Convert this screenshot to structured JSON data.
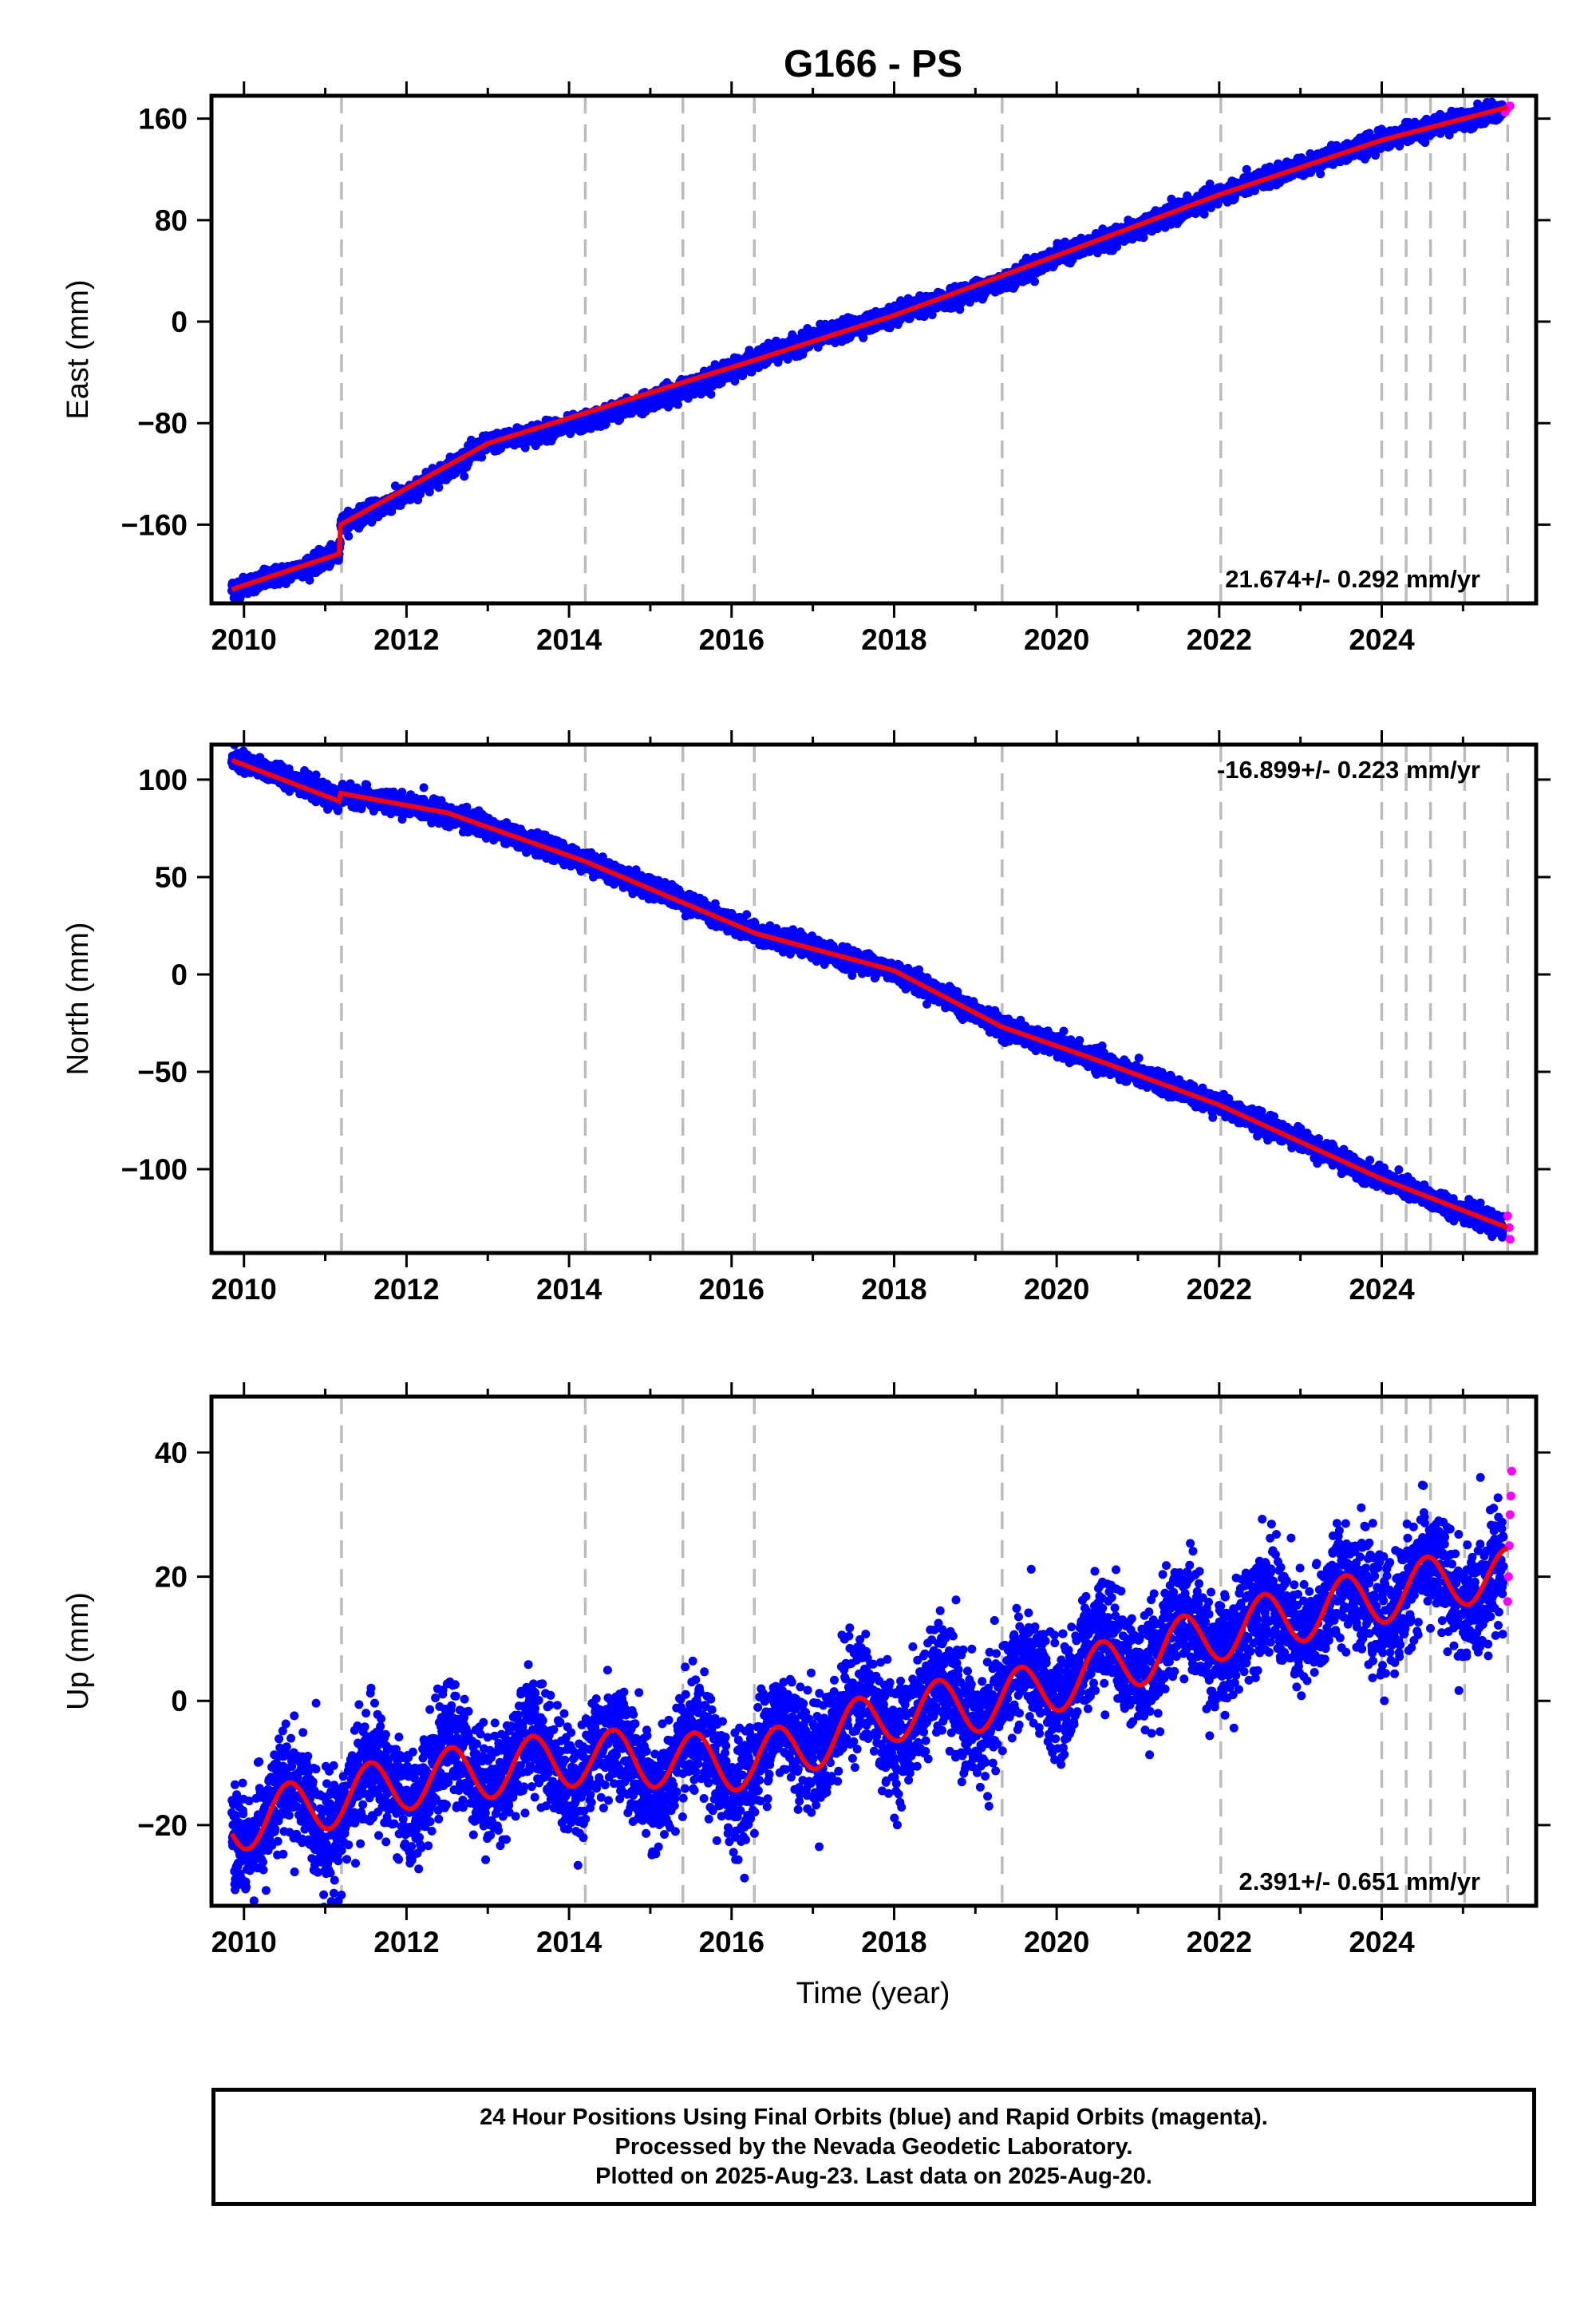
{
  "title": "G166 - PS",
  "xlabel": "Time (year)",
  "colors": {
    "final": "#0000ff",
    "rapid": "#ff00ff",
    "model": "#ff0000",
    "event_line": "#bbbbbb"
  },
  "footer": {
    "line1": "24 Hour Positions Using Final Orbits (blue) and Rapid Orbits (magenta).",
    "line2": "Processed by the Nevada Geodetic Laboratory.",
    "line3": "Plotted on 2025-Aug-23. Last data on 2025-Aug-20."
  },
  "chart_data": [
    {
      "type": "scatter",
      "component": "east",
      "ylabel": "East (mm)",
      "rate_label": "21.674+/- 0.292 mm/yr",
      "rate_position": "bottom-right",
      "xlim": [
        2009.6,
        2025.9
      ],
      "ylim": [
        -222,
        178
      ],
      "xticks": [
        2010,
        2012,
        2014,
        2016,
        2018,
        2020,
        2022,
        2024
      ],
      "yticks": [
        -160,
        -80,
        0,
        80,
        160
      ],
      "event_lines": [
        2011.2,
        2014.2,
        2015.4,
        2016.28,
        2019.33,
        2022.02,
        2024.0,
        2024.3,
        2024.6,
        2025.02,
        2025.55
      ],
      "model_trend": [
        [
          2009.85,
          -211
        ],
        [
          2011.17,
          -183
        ],
        [
          2011.19,
          -160
        ],
        [
          2013.0,
          -96
        ],
        [
          2016.3,
          -30
        ],
        [
          2018.0,
          5
        ],
        [
          2020.0,
          52
        ],
        [
          2022.0,
          100
        ],
        [
          2024.0,
          143
        ],
        [
          2025.55,
          169
        ]
      ],
      "final_points": [
        [
          2009.85,
          -211
        ],
        [
          2010.5,
          -199
        ],
        [
          2011.17,
          -183
        ],
        [
          2011.19,
          -160
        ],
        [
          2012.0,
          -137
        ],
        [
          2013.0,
          -96
        ],
        [
          2014.2,
          -79
        ],
        [
          2015.4,
          -53
        ],
        [
          2016.3,
          -30
        ],
        [
          2017.0,
          -14
        ],
        [
          2018.0,
          5
        ],
        [
          2019.4,
          33
        ],
        [
          2020.0,
          52
        ],
        [
          2021.0,
          73
        ],
        [
          2022.0,
          100
        ],
        [
          2023.0,
          122
        ],
        [
          2024.0,
          143
        ],
        [
          2025.0,
          160
        ],
        [
          2025.5,
          166
        ]
      ],
      "rapid_points": [
        [
          2025.52,
          165
        ],
        [
          2025.55,
          168
        ],
        [
          2025.58,
          170
        ]
      ],
      "noise_mm": 3.5
    },
    {
      "type": "scatter",
      "component": "north",
      "ylabel": "North (mm)",
      "rate_label": "-16.899+/- 0.223 mm/yr",
      "rate_position": "top-right",
      "xlim": [
        2009.6,
        2025.9
      ],
      "ylim": [
        -143,
        118
      ],
      "xticks": [
        2010,
        2012,
        2014,
        2016,
        2018,
        2020,
        2022,
        2024
      ],
      "yticks": [
        -100,
        -50,
        0,
        50,
        100
      ],
      "event_lines": [
        2011.2,
        2014.2,
        2015.4,
        2016.28,
        2019.33,
        2022.02,
        2024.0,
        2024.3,
        2024.6,
        2025.02,
        2025.55
      ],
      "model_trend": [
        [
          2009.85,
          110
        ],
        [
          2011.17,
          89
        ],
        [
          2011.19,
          93
        ],
        [
          2012.5,
          83
        ],
        [
          2014.2,
          58
        ],
        [
          2016.3,
          21
        ],
        [
          2018.0,
          2
        ],
        [
          2019.33,
          -27
        ],
        [
          2020.5,
          -44
        ],
        [
          2022.0,
          -67
        ],
        [
          2024.0,
          -105
        ],
        [
          2025.55,
          -130
        ]
      ],
      "final_points": [
        [
          2009.85,
          110
        ],
        [
          2010.5,
          102
        ],
        [
          2011.17,
          89
        ],
        [
          2011.19,
          93
        ],
        [
          2012.5,
          83
        ],
        [
          2014.2,
          58
        ],
        [
          2015.4,
          38
        ],
        [
          2016.3,
          21
        ],
        [
          2018.0,
          2
        ],
        [
          2019.33,
          -27
        ],
        [
          2020.5,
          -44
        ],
        [
          2022.0,
          -67
        ],
        [
          2023.0,
          -85
        ],
        [
          2024.0,
          -105
        ],
        [
          2025.5,
          -130
        ]
      ],
      "rapid_points": [
        [
          2025.55,
          -124
        ],
        [
          2025.57,
          -130
        ],
        [
          2025.58,
          -136
        ]
      ],
      "noise_mm": 2.5
    },
    {
      "type": "scatter",
      "component": "up",
      "ylabel": "Up (mm)",
      "rate_label": "2.391+/- 0.651 mm/yr",
      "rate_position": "bottom-right",
      "xlim": [
        2009.6,
        2025.9
      ],
      "ylim": [
        -33,
        49
      ],
      "xticks": [
        2010,
        2012,
        2014,
        2016,
        2018,
        2020,
        2022,
        2024
      ],
      "yticks": [
        -20,
        0,
        20,
        40
      ],
      "event_lines": [
        2011.2,
        2014.2,
        2015.4,
        2016.28,
        2019.33,
        2022.02,
        2024.0,
        2024.3,
        2024.6,
        2025.02,
        2025.55
      ],
      "model_trend": [
        [
          2009.85,
          -20
        ],
        [
          2012.0,
          -13
        ],
        [
          2014.2,
          -9
        ],
        [
          2016.28,
          -10
        ],
        [
          2018.0,
          -2
        ],
        [
          2019.33,
          0
        ],
        [
          2022.0,
          11
        ],
        [
          2024.0,
          17
        ],
        [
          2025.0,
          20
        ],
        [
          2025.55,
          20
        ]
      ],
      "seasonal_amplitude_mm": 4.5,
      "final_points": [
        [
          2009.85,
          -20
        ],
        [
          2011.0,
          -17
        ],
        [
          2012.0,
          -13
        ],
        [
          2013.0,
          -10
        ],
        [
          2014.2,
          -9
        ],
        [
          2015.0,
          -11
        ],
        [
          2016.28,
          -10
        ],
        [
          2017.0,
          -4
        ],
        [
          2018.0,
          -2
        ],
        [
          2019.33,
          0
        ],
        [
          2020.5,
          7
        ],
        [
          2022.0,
          11
        ],
        [
          2023.0,
          14
        ],
        [
          2024.0,
          17
        ],
        [
          2025.0,
          19
        ]
      ],
      "rapid_points": [
        [
          2025.55,
          16
        ],
        [
          2025.56,
          20
        ],
        [
          2025.57,
          25
        ],
        [
          2025.58,
          30
        ],
        [
          2025.59,
          33
        ],
        [
          2025.6,
          37
        ]
      ],
      "noise_mm": 4.5
    }
  ]
}
